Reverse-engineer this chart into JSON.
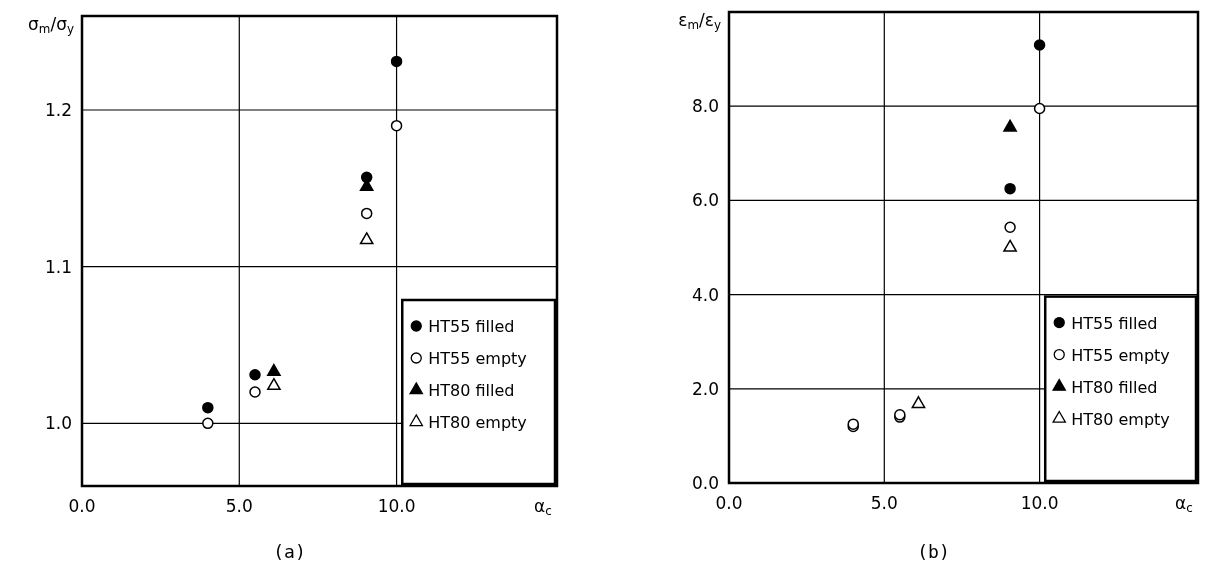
{
  "chart_data": [
    {
      "type": "scatter",
      "title": "(a)",
      "xlabel": "α$_{c}$",
      "ylabel": "σ$_{m}$/σ$_{y}$",
      "xlim": [
        0,
        15.1
      ],
      "ylim": [
        0.96,
        1.26
      ],
      "xticks": [
        {
          "value": 0,
          "label": "0.0"
        },
        {
          "value": 5,
          "label": "5.0"
        },
        {
          "value": 10,
          "label": "10.0"
        }
      ],
      "yticks": [
        {
          "value": 1.0,
          "label": "1.0"
        },
        {
          "value": 1.1,
          "label": "1.1"
        },
        {
          "value": 1.2,
          "label": "1.2"
        }
      ],
      "grid": true,
      "legend": "bottom right",
      "series": [
        {
          "name": "HT55 filled",
          "color": "#000000",
          "marker": "circle",
          "x": [
            4.0,
            5.5,
            9.05,
            10.0
          ],
          "values": [
            1.01,
            1.031,
            1.157,
            1.231
          ]
        },
        {
          "name": "HT55 empty",
          "color": "#ffffff",
          "marker": "circle",
          "x": [
            4.0,
            5.5,
            9.05,
            10.0
          ],
          "values": [
            1.0,
            1.02,
            1.134,
            1.19
          ]
        },
        {
          "name": "HT80 filled",
          "color": "#000000",
          "marker": "triangle",
          "x": [
            6.1,
            9.05
          ],
          "values": [
            1.033,
            1.151
          ]
        },
        {
          "name": "HT80 empty",
          "color": "#ffffff",
          "marker": "triangle",
          "x": [
            6.1,
            9.05
          ],
          "values": [
            1.024,
            1.117
          ]
        }
      ]
    },
    {
      "type": "scatter",
      "title": "(b)",
      "xlabel": "α$_{c}$",
      "ylabel": "ε$_{m}$/ε$_{y}$",
      "xlim": [
        0,
        15.1
      ],
      "ylim": [
        0,
        10
      ],
      "xticks": [
        {
          "value": 0,
          "label": "0.0"
        },
        {
          "value": 5,
          "label": "5.0"
        },
        {
          "value": 10,
          "label": "10.0"
        }
      ],
      "yticks": [
        {
          "value": 0,
          "label": "0.0"
        },
        {
          "value": 2,
          "label": "2.0"
        },
        {
          "value": 4,
          "label": "4.0"
        },
        {
          "value": 6,
          "label": "6.0"
        },
        {
          "value": 8,
          "label": "8.0"
        }
      ],
      "grid": true,
      "legend": "bottom right",
      "series": [
        {
          "name": "HT55 filled",
          "color": "#000000",
          "marker": "circle",
          "x": [
            9.05,
            10.0
          ],
          "values": [
            6.25,
            9.3
          ]
        },
        {
          "name": "HT55 empty",
          "color": "#ffffff",
          "marker": "circle",
          "x": [
            4.0,
            4.0,
            5.5,
            5.5,
            9.05,
            10.0
          ],
          "values": [
            1.2,
            1.25,
            1.4,
            1.45,
            5.43,
            7.95
          ]
        },
        {
          "name": "HT80 filled",
          "color": "#000000",
          "marker": "triangle",
          "x": [
            9.05
          ],
          "values": [
            7.55
          ]
        },
        {
          "name": "HT80 empty",
          "color": "#ffffff",
          "marker": "triangle",
          "x": [
            6.1,
            9.05
          ],
          "values": [
            1.68,
            5.0
          ]
        }
      ]
    }
  ]
}
